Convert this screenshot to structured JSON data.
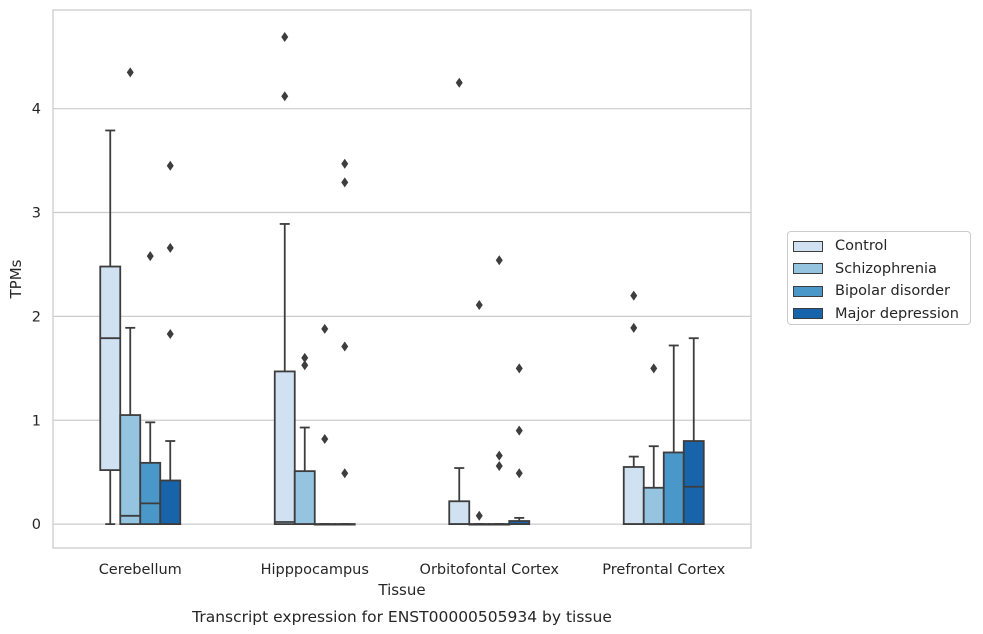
{
  "chart_data": {
    "type": "box",
    "title": "Transcript expression for ENST00000505934 by tissue",
    "xlabel": "Tissue",
    "ylabel": "TPMs",
    "ylim": [
      -0.23,
      4.95
    ],
    "yticks": [
      0,
      1,
      2,
      3,
      4
    ],
    "grid": true,
    "legend_position": "right",
    "categories": [
      "Cerebellum",
      "Hipppocampus",
      "Orbitofontal Cortex",
      "Prefrontal Cortex"
    ],
    "series": [
      {
        "name": "Control",
        "color": "#d0e1f2",
        "boxes": [
          {
            "whislo": 0.0,
            "q1": 0.52,
            "med": 1.79,
            "q3": 2.48,
            "whishi": 3.79,
            "fliers": []
          },
          {
            "whislo": 0.0,
            "q1": 0.0,
            "med": 0.02,
            "q3": 1.47,
            "whishi": 2.89,
            "fliers": [
              4.12,
              4.69
            ]
          },
          {
            "whislo": 0.0,
            "q1": 0.0,
            "med": 0.0,
            "q3": 0.22,
            "whishi": 0.54,
            "fliers": [
              4.25
            ]
          },
          {
            "whislo": 0.0,
            "q1": 0.0,
            "med": 0.0,
            "q3": 0.55,
            "whishi": 0.65,
            "fliers": [
              1.89,
              2.2
            ]
          }
        ]
      },
      {
        "name": "Schizophrenia",
        "color": "#94c4df",
        "boxes": [
          {
            "whislo": 0.0,
            "q1": 0.0,
            "med": 0.08,
            "q3": 1.05,
            "whishi": 1.89,
            "fliers": [
              4.35
            ]
          },
          {
            "whislo": 0.0,
            "q1": 0.0,
            "med": 0.0,
            "q3": 0.51,
            "whishi": 0.93,
            "fliers": [
              1.53,
              1.6
            ]
          },
          {
            "whislo": 0.0,
            "q1": 0.0,
            "med": 0.0,
            "q3": 0.0,
            "whishi": 0.0,
            "fliers": [
              0.08,
              2.11
            ]
          },
          {
            "whislo": 0.0,
            "q1": 0.0,
            "med": 0.0,
            "q3": 0.35,
            "whishi": 0.75,
            "fliers": [
              1.5
            ]
          }
        ]
      },
      {
        "name": "Bipolar disorder",
        "color": "#4a98c9",
        "boxes": [
          {
            "whislo": 0.0,
            "q1": 0.0,
            "med": 0.2,
            "q3": 0.59,
            "whishi": 0.98,
            "fliers": [
              2.58
            ]
          },
          {
            "whislo": 0.0,
            "q1": 0.0,
            "med": 0.0,
            "q3": 0.0,
            "whishi": 0.0,
            "fliers": [
              0.82,
              1.88
            ]
          },
          {
            "whislo": 0.0,
            "q1": 0.0,
            "med": 0.0,
            "q3": 0.0,
            "whishi": 0.0,
            "fliers": [
              0.56,
              0.66,
              2.54
            ]
          },
          {
            "whislo": 0.0,
            "q1": 0.0,
            "med": 0.0,
            "q3": 0.69,
            "whishi": 1.72,
            "fliers": []
          }
        ]
      },
      {
        "name": "Major depression",
        "color": "#1764ab",
        "boxes": [
          {
            "whislo": 0.0,
            "q1": 0.0,
            "med": 0.0,
            "q3": 0.42,
            "whishi": 0.8,
            "fliers": [
              1.83,
              2.66,
              3.45
            ]
          },
          {
            "whislo": 0.0,
            "q1": 0.0,
            "med": 0.0,
            "q3": 0.0,
            "whishi": 0.0,
            "fliers": [
              0.49,
              1.71,
              3.29,
              3.47
            ]
          },
          {
            "whislo": 0.0,
            "q1": 0.0,
            "med": 0.0,
            "q3": 0.03,
            "whishi": 0.06,
            "fliers": [
              0.49,
              0.9,
              1.5
            ]
          },
          {
            "whislo": 0.0,
            "q1": 0.0,
            "med": 0.36,
            "q3": 0.8,
            "whishi": 1.79,
            "fliers": []
          }
        ]
      }
    ]
  }
}
